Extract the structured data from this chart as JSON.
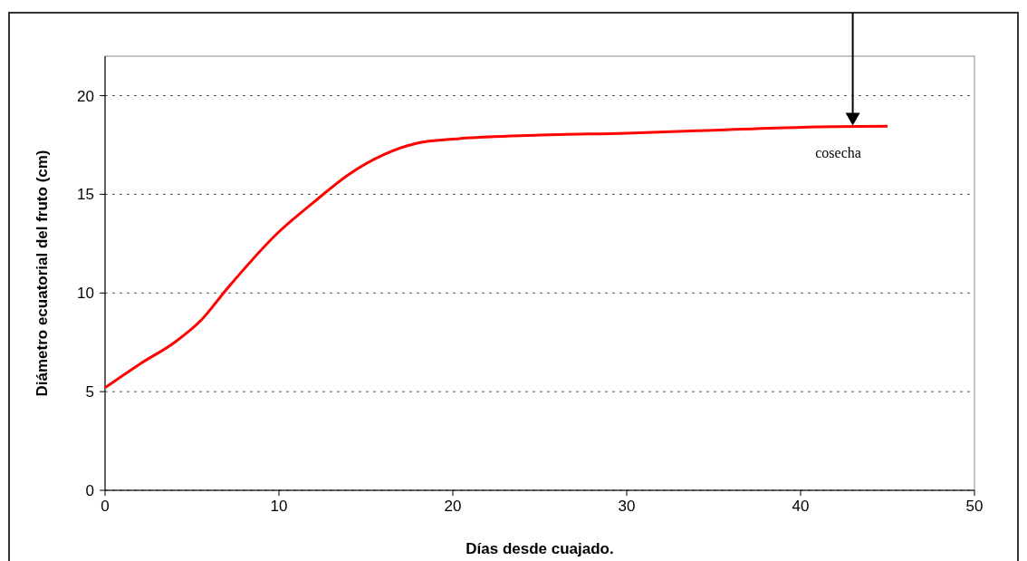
{
  "chart_data": {
    "type": "line",
    "xlabel": "Días desde cuajado.",
    "ylabel": "Diámetro ecuatorial del fruto (cm)",
    "xlim": [
      0,
      50
    ],
    "xticks": [
      0,
      10,
      20,
      30,
      40,
      50
    ],
    "ylim": [
      0,
      22
    ],
    "yticks": [
      0,
      5,
      10,
      15,
      20
    ],
    "grid": "y",
    "series": [
      {
        "color": "#ff0000",
        "x": [
          0,
          2,
          4,
          5.5,
          7,
          10,
          12,
          14,
          16,
          18,
          20,
          25,
          30,
          35,
          40,
          45
        ],
        "values": [
          5.2,
          6.4,
          7.5,
          8.6,
          10.2,
          13.1,
          14.6,
          16.0,
          17.0,
          17.6,
          17.8,
          18.0,
          18.1,
          18.25,
          18.4,
          18.45
        ]
      }
    ],
    "annotations": [
      {
        "text": "cosecha",
        "x": 43,
        "y": 18.4
      }
    ]
  }
}
